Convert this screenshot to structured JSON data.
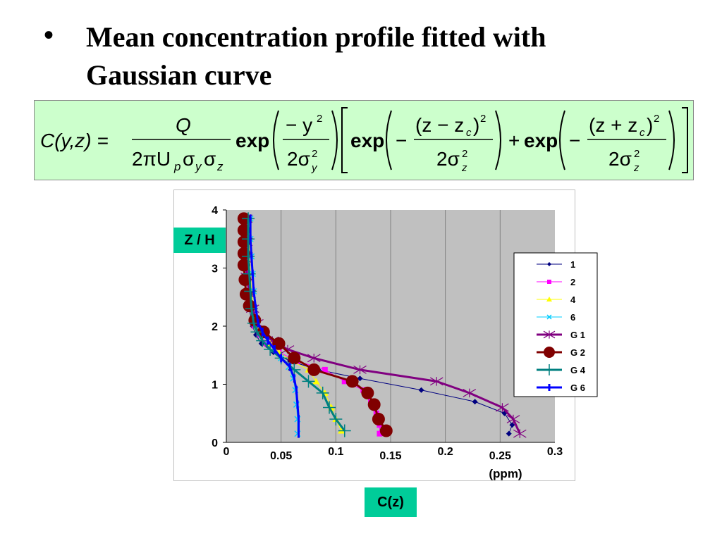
{
  "slide": {
    "bullet": "•",
    "title_line1": "Mean concentration profile fitted with",
    "title_line2": "Gaussian curve"
  },
  "formula": {
    "lhs": "C(y,z) =",
    "numerator": "Q",
    "denominator": "2πU",
    "denominator_sub_p": "p",
    "sigma": "σ",
    "sub_y": "y",
    "sub_z": "z",
    "exp": "exp",
    "neg_y2": "− y",
    "two_sigma": "2σ",
    "term1_num": "(z − z",
    "term2_num": "(z + z",
    "sub_c": "c",
    "close_paren_sq": ")",
    "sq": "2",
    "minus": "−",
    "plus": "+"
  },
  "axis_badges": {
    "y": "Z / H",
    "x": "C(z)"
  },
  "chart_data": {
    "type": "scatter",
    "xlim": [
      0,
      0.3
    ],
    "ylim": [
      0,
      4
    ],
    "x_ticks": [
      "0",
      "0.05",
      "0.1",
      "0.15",
      "0.2",
      "0.25",
      "0.3"
    ],
    "y_ticks": [
      "0",
      "1",
      "2",
      "3",
      "4"
    ],
    "x_unit": "(ppm)",
    "plot_background": "#c0c0c0",
    "vertical_gridlines": true,
    "legend_position": "right",
    "series": [
      {
        "name": "1",
        "color": "#000080",
        "marker": "diamond",
        "line": true,
        "line_width": 1,
        "points": [
          [
            0.258,
            0.15
          ],
          [
            0.261,
            0.3
          ],
          [
            0.254,
            0.5
          ],
          [
            0.227,
            0.7
          ],
          [
            0.178,
            0.9
          ],
          [
            0.122,
            1.1
          ],
          [
            0.084,
            1.25
          ],
          [
            0.058,
            1.4
          ],
          [
            0.043,
            1.55
          ],
          [
            0.032,
            1.7
          ],
          [
            0.027,
            1.85
          ],
          [
            0.024,
            2.0
          ],
          [
            0.021,
            2.3
          ],
          [
            0.02,
            2.6
          ],
          [
            0.019,
            2.9
          ],
          [
            0.018,
            3.2
          ],
          [
            0.018,
            3.5
          ],
          [
            0.018,
            3.85
          ]
        ]
      },
      {
        "name": "2",
        "color": "#ff00ff",
        "marker": "square",
        "line": true,
        "line_width": 1,
        "points": [
          [
            0.14,
            0.15
          ],
          [
            0.14,
            0.3
          ],
          [
            0.137,
            0.5
          ],
          [
            0.132,
            0.7
          ],
          [
            0.125,
            0.9
          ],
          [
            0.108,
            1.05
          ],
          [
            0.09,
            1.25
          ],
          [
            0.065,
            1.4
          ],
          [
            0.048,
            1.55
          ],
          [
            0.037,
            1.7
          ],
          [
            0.03,
            1.85
          ],
          [
            0.026,
            2.0
          ],
          [
            0.023,
            2.3
          ],
          [
            0.021,
            2.6
          ],
          [
            0.02,
            2.9
          ],
          [
            0.019,
            3.2
          ],
          [
            0.019,
            3.5
          ],
          [
            0.019,
            3.85
          ]
        ]
      },
      {
        "name": "4",
        "color": "#ffff00",
        "marker": "triangle",
        "line": true,
        "line_width": 1,
        "points": [
          [
            0.105,
            0.2
          ],
          [
            0.1,
            0.4
          ],
          [
            0.096,
            0.6
          ],
          [
            0.09,
            0.85
          ],
          [
            0.082,
            1.05
          ],
          [
            0.075,
            1.25
          ],
          [
            0.06,
            1.4
          ],
          [
            0.048,
            1.55
          ],
          [
            0.04,
            1.7
          ],
          [
            0.033,
            1.85
          ],
          [
            0.028,
            2.0
          ],
          [
            0.025,
            2.3
          ],
          [
            0.023,
            2.6
          ],
          [
            0.022,
            2.9
          ],
          [
            0.021,
            3.2
          ],
          [
            0.021,
            3.5
          ],
          [
            0.021,
            3.85
          ]
        ]
      },
      {
        "name": "6",
        "color": "#00ccff",
        "marker": "x",
        "line": true,
        "line_width": 1,
        "points": [
          [
            0.065,
            0.15
          ],
          [
            0.065,
            0.4
          ],
          [
            0.064,
            0.65
          ],
          [
            0.063,
            0.9
          ],
          [
            0.061,
            1.1
          ],
          [
            0.057,
            1.3
          ],
          [
            0.05,
            1.45
          ],
          [
            0.044,
            1.6
          ],
          [
            0.038,
            1.75
          ],
          [
            0.033,
            1.9
          ],
          [
            0.029,
            2.05
          ],
          [
            0.026,
            2.3
          ],
          [
            0.025,
            2.6
          ],
          [
            0.024,
            2.9
          ],
          [
            0.023,
            3.2
          ],
          [
            0.022,
            3.5
          ],
          [
            0.022,
            3.85
          ]
        ]
      },
      {
        "name": "G 1",
        "color": "#800080",
        "marker": "star",
        "line": true,
        "line_width": 3,
        "points": [
          [
            0.268,
            0.15
          ],
          [
            0.262,
            0.4
          ],
          [
            0.252,
            0.6
          ],
          [
            0.222,
            0.85
          ],
          [
            0.192,
            1.05
          ],
          [
            0.122,
            1.25
          ],
          [
            0.08,
            1.45
          ],
          [
            0.056,
            1.6
          ],
          [
            0.042,
            1.75
          ],
          [
            0.033,
            1.9
          ],
          [
            0.028,
            2.05
          ],
          [
            0.024,
            2.3
          ],
          [
            0.021,
            2.55
          ],
          [
            0.019,
            2.85
          ],
          [
            0.018,
            3.15
          ],
          [
            0.018,
            3.45
          ],
          [
            0.018,
            3.85
          ]
        ]
      },
      {
        "name": "G 2",
        "color": "#800000",
        "marker": "circle",
        "line": true,
        "line_width": 3,
        "points": [
          [
            0.146,
            0.2
          ],
          [
            0.139,
            0.4
          ],
          [
            0.135,
            0.65
          ],
          [
            0.129,
            0.85
          ],
          [
            0.115,
            1.05
          ],
          [
            0.08,
            1.25
          ],
          [
            0.062,
            1.45
          ],
          [
            0.048,
            1.7
          ],
          [
            0.034,
            1.9
          ],
          [
            0.026,
            2.1
          ],
          [
            0.021,
            2.35
          ],
          [
            0.018,
            2.55
          ],
          [
            0.017,
            2.8
          ],
          [
            0.016,
            3.05
          ],
          [
            0.016,
            3.25
          ],
          [
            0.016,
            3.45
          ],
          [
            0.016,
            3.65
          ],
          [
            0.016,
            3.85
          ]
        ]
      },
      {
        "name": "G 4",
        "color": "#008080",
        "marker": "plus",
        "line": true,
        "line_width": 3,
        "points": [
          [
            0.108,
            0.2
          ],
          [
            0.1,
            0.4
          ],
          [
            0.094,
            0.6
          ],
          [
            0.088,
            0.85
          ],
          [
            0.075,
            1.05
          ],
          [
            0.062,
            1.25
          ],
          [
            0.05,
            1.45
          ],
          [
            0.04,
            1.6
          ],
          [
            0.033,
            1.75
          ],
          [
            0.028,
            1.9
          ],
          [
            0.025,
            2.05
          ],
          [
            0.023,
            2.3
          ],
          [
            0.022,
            2.6
          ],
          [
            0.021,
            2.9
          ],
          [
            0.02,
            3.2
          ],
          [
            0.02,
            3.5
          ],
          [
            0.02,
            3.85
          ]
        ]
      },
      {
        "name": "G 6",
        "color": "#0000ff",
        "marker": "dash",
        "line": true,
        "line_width": 3,
        "points": [
          [
            0.066,
            0.15
          ],
          [
            0.066,
            0.4
          ],
          [
            0.065,
            0.65
          ],
          [
            0.064,
            0.9
          ],
          [
            0.062,
            1.1
          ],
          [
            0.058,
            1.3
          ],
          [
            0.05,
            1.45
          ],
          [
            0.044,
            1.6
          ],
          [
            0.038,
            1.75
          ],
          [
            0.033,
            1.9
          ],
          [
            0.029,
            2.05
          ],
          [
            0.027,
            2.3
          ],
          [
            0.025,
            2.6
          ],
          [
            0.024,
            2.9
          ],
          [
            0.023,
            3.2
          ],
          [
            0.022,
            3.5
          ],
          [
            0.022,
            3.85
          ]
        ]
      }
    ]
  }
}
